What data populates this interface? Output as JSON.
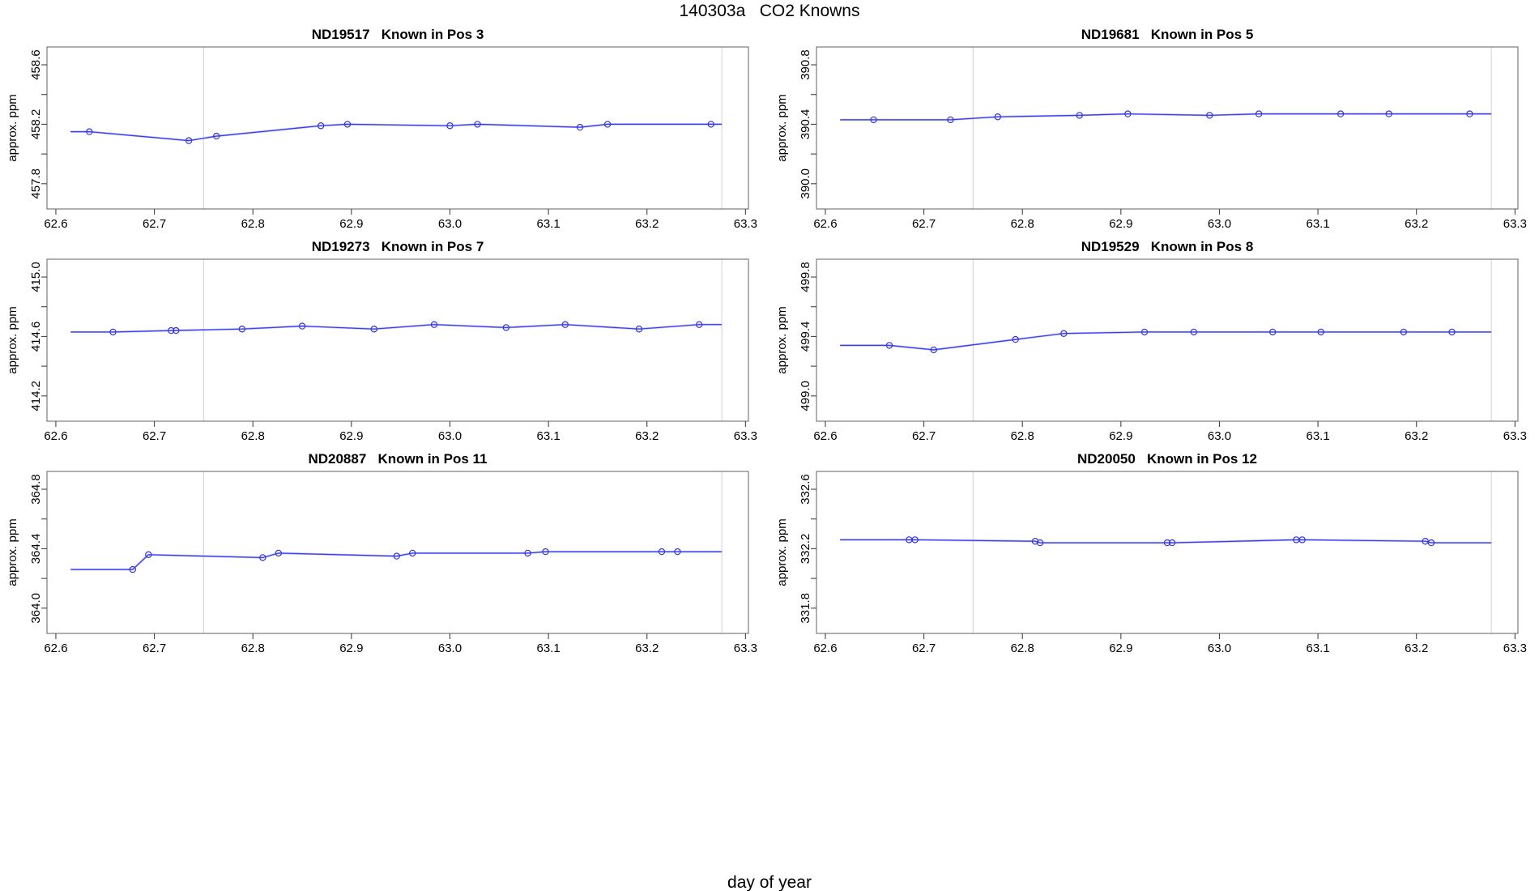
{
  "page_title": "140303a   CO2 Knowns",
  "x_axis_label": "day of year",
  "y_axis_label": "approx. ppm",
  "colors": {
    "line_blue": "#3b3bee",
    "line_pale_blue": "#b6bcf4",
    "marker_blue": "#3333e6",
    "ref_line_gray": "#d8d8d8",
    "box_gray": "#707070",
    "tick_black": "#444444",
    "text_black": "#000000"
  },
  "x_ticks": {
    "values": [
      62.6,
      62.7,
      62.8,
      62.9,
      63.0,
      63.1,
      63.2,
      63.3
    ],
    "labels": [
      "62.6",
      "62.7",
      "62.8",
      "62.9",
      "63.0",
      "63.1",
      "63.2",
      "63.3"
    ]
  },
  "xlim": [
    62.591,
    63.303
  ],
  "ref_lines_x": [
    62.75,
    63.276
  ],
  "line_start_x": 62.615,
  "line_end_x": 63.276,
  "chart_data": [
    {
      "type": "line",
      "id": "ND19517",
      "title": "ND19517   Known in Pos 3",
      "ylabel": "approx. ppm",
      "ylim": [
        457.63,
        458.72
      ],
      "y_tick_values": [
        457.8,
        458.0,
        458.2,
        458.4,
        458.6
      ],
      "y_tick_labels": [
        "457.8",
        "",
        "458.2",
        "",
        "458.6"
      ],
      "x": [
        62.634,
        62.735,
        62.763,
        62.869,
        62.896,
        63.0,
        63.028,
        63.132,
        63.16,
        63.265
      ],
      "y": [
        458.15,
        458.09,
        458.12,
        458.19,
        458.2,
        458.19,
        458.2,
        458.18,
        458.2,
        458.2
      ],
      "extra_markers": []
    },
    {
      "type": "line",
      "id": "ND19681",
      "title": "ND19681   Known in Pos 5",
      "ylabel": "approx. ppm",
      "ylim": [
        389.83,
        390.92
      ],
      "y_tick_values": [
        390.0,
        390.2,
        390.4,
        390.6,
        390.8
      ],
      "y_tick_labels": [
        "390.0",
        "",
        "390.4",
        "",
        "390.8"
      ],
      "x": [
        62.649,
        62.727,
        62.775,
        62.858,
        62.907,
        62.99,
        63.04,
        63.123,
        63.172,
        63.254
      ],
      "y": [
        390.43,
        390.43,
        390.45,
        390.46,
        390.47,
        390.46,
        390.47,
        390.47,
        390.47,
        390.47
      ],
      "extra_markers": []
    },
    {
      "type": "line",
      "id": "ND19273",
      "title": "ND19273   Known in Pos 7",
      "ylabel": "approx. ppm",
      "ylim": [
        414.03,
        415.12
      ],
      "y_tick_values": [
        414.2,
        414.4,
        414.6,
        414.8,
        415.0
      ],
      "y_tick_labels": [
        "414.2",
        "",
        "414.6",
        "",
        "415.0"
      ],
      "x": [
        62.658,
        62.717,
        62.789,
        62.85,
        62.923,
        62.984,
        63.057,
        63.117,
        63.192,
        63.253
      ],
      "y": [
        414.63,
        414.64,
        414.65,
        414.67,
        414.65,
        414.68,
        414.66,
        414.68,
        414.65,
        414.68
      ],
      "extra_markers": [
        {
          "x": 62.722,
          "y": 414.64
        }
      ]
    },
    {
      "type": "line",
      "id": "ND19529",
      "title": "ND19529   Known in Pos 8",
      "ylabel": "approx. ppm",
      "ylim": [
        498.83,
        499.92
      ],
      "y_tick_values": [
        499.0,
        499.2,
        499.4,
        499.6,
        499.8
      ],
      "y_tick_labels": [
        "499.0",
        "",
        "499.4",
        "",
        "499.8"
      ],
      "x": [
        62.665,
        62.71,
        62.793,
        62.842,
        62.924,
        62.974,
        63.054,
        63.103,
        63.187,
        63.236
      ],
      "y": [
        499.34,
        499.31,
        499.38,
        499.42,
        499.43,
        499.43,
        499.43,
        499.43,
        499.43,
        499.43
      ],
      "extra_markers": []
    },
    {
      "type": "line",
      "id": "ND20887",
      "title": "ND20887   Known in Pos 11",
      "ylabel": "approx. ppm",
      "ylim": [
        363.83,
        364.92
      ],
      "y_tick_values": [
        364.0,
        364.2,
        364.4,
        364.6,
        364.8
      ],
      "y_tick_labels": [
        "364.0",
        "",
        "364.4",
        "",
        "364.8"
      ],
      "x": [
        62.678,
        62.694,
        62.81,
        62.826,
        62.946,
        62.962,
        63.079,
        63.097,
        63.215,
        63.231
      ],
      "y": [
        364.26,
        364.36,
        364.34,
        364.37,
        364.35,
        364.37,
        364.37,
        364.38,
        364.38,
        364.38
      ],
      "extra_markers": []
    },
    {
      "type": "line",
      "id": "ND20050",
      "title": "ND20050   Known in Pos 12",
      "ylabel": "approx. ppm",
      "ylim": [
        331.63,
        332.72
      ],
      "y_tick_values": [
        331.8,
        332.0,
        332.2,
        332.4,
        332.6
      ],
      "y_tick_labels": [
        "331.8",
        "",
        "332.2",
        "",
        "332.6"
      ],
      "x": [
        62.685,
        62.691,
        62.813,
        62.818,
        62.947,
        62.952,
        63.078,
        63.084,
        63.209,
        63.215
      ],
      "y": [
        332.26,
        332.26,
        332.25,
        332.24,
        332.24,
        332.24,
        332.26,
        332.26,
        332.25,
        332.24
      ],
      "extra_markers": []
    }
  ]
}
